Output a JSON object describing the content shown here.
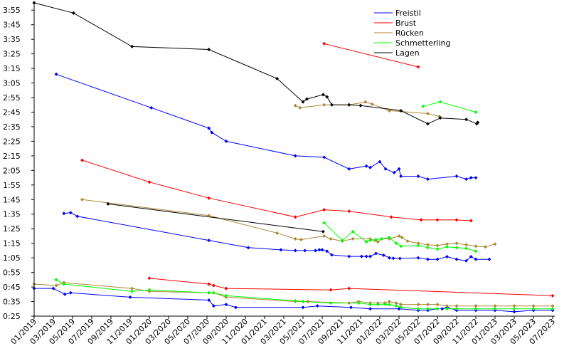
{
  "chart_data": {
    "type": "line",
    "title": "",
    "xlabel": "",
    "ylabel": "",
    "grid": false,
    "legend_position": "top-center",
    "x_tick_labels": [
      "01/2019",
      "03/2019",
      "05/2019",
      "07/2019",
      "09/2019",
      "11/2019",
      "01/2020",
      "03/2020",
      "05/2020",
      "07/2020",
      "09/2020",
      "11/2020",
      "01/2021",
      "03/2021",
      "05/2021",
      "07/2021",
      "09/2021",
      "11/2021",
      "01/2022",
      "03/2022",
      "05/2022",
      "07/2022",
      "09/2022",
      "11/2022",
      "01/2023",
      "03/2023",
      "05/2023",
      "07/2023"
    ],
    "y_ticks": [
      {
        "label": "0:25",
        "value": 25
      },
      {
        "label": "0:35",
        "value": 35
      },
      {
        "label": "0:45",
        "value": 45
      },
      {
        "label": "0:55",
        "value": 55
      },
      {
        "label": "1:05",
        "value": 65
      },
      {
        "label": "1:15",
        "value": 75
      },
      {
        "label": "1:25",
        "value": 85
      },
      {
        "label": "1:35",
        "value": 95
      },
      {
        "label": "1:45",
        "value": 105
      },
      {
        "label": "1:55",
        "value": 115
      },
      {
        "label": "2:05",
        "value": 125
      },
      {
        "label": "2:15",
        "value": 135
      },
      {
        "label": "2:25",
        "value": 145
      },
      {
        "label": "2:35",
        "value": 155
      },
      {
        "label": "2:45",
        "value": 165
      },
      {
        "label": "2:55",
        "value": 175
      },
      {
        "label": "3:05",
        "value": 185
      },
      {
        "label": "3:15",
        "value": 195
      },
      {
        "label": "3:25",
        "value": 205
      },
      {
        "label": "3:35",
        "value": 215
      },
      {
        "label": "3:45",
        "value": 225
      },
      {
        "label": "3:55",
        "value": 235
      }
    ],
    "xlim": [
      0,
      54
    ],
    "ylim": [
      25,
      240
    ],
    "x_unit": "months since 01/2019",
    "y_unit": "seconds",
    "series": [
      {
        "name": "Freistil",
        "color": "#0000ff",
        "segments": [
          [
            [
              0,
              44
            ],
            [
              2,
              44
            ],
            [
              3.2,
              40
            ],
            [
              3.8,
              41
            ],
            [
              10,
              38
            ],
            [
              18.2,
              36
            ],
            [
              18.7,
              32
            ],
            [
              20,
              33
            ],
            [
              21,
              31
            ],
            [
              28,
              31
            ],
            [
              29.5,
              32
            ],
            [
              33,
              31
            ],
            [
              35,
              30
            ],
            [
              38,
              30
            ],
            [
              40,
              29
            ],
            [
              41,
              29
            ],
            [
              42,
              30
            ],
            [
              42.5,
              30
            ],
            [
              43,
              31
            ],
            [
              44,
              29
            ],
            [
              46,
              29
            ],
            [
              48,
              29
            ],
            [
              50,
              28
            ],
            [
              52,
              29
            ],
            [
              54,
              29
            ]
          ],
          [
            [
              3.1,
              95.5
            ],
            [
              3.8,
              96
            ],
            [
              4.5,
              93.5
            ],
            [
              18.2,
              77
            ],
            [
              22.3,
              72
            ],
            [
              25.7,
              70.5
            ],
            [
              27.2,
              70
            ],
            [
              28.2,
              70
            ],
            [
              29.3,
              70
            ],
            [
              29.7,
              70.5
            ],
            [
              30,
              70.5
            ],
            [
              30.5,
              69.5
            ],
            [
              31,
              67
            ],
            [
              32.8,
              66
            ],
            [
              34.1,
              66
            ],
            [
              34.6,
              66
            ],
            [
              35,
              66
            ],
            [
              35.6,
              68
            ],
            [
              36.4,
              66.8
            ],
            [
              37,
              65
            ],
            [
              37.4,
              64.7
            ],
            [
              38.1,
              64.6
            ],
            [
              40,
              65
            ],
            [
              41,
              64
            ],
            [
              42,
              64
            ],
            [
              43,
              65.8
            ],
            [
              44,
              64
            ],
            [
              45,
              63
            ],
            [
              45.5,
              65.8
            ],
            [
              46,
              64
            ],
            [
              47.4,
              64
            ]
          ],
          [
            [
              2.3,
              191
            ],
            [
              12.2,
              168
            ],
            [
              18.2,
              154
            ],
            [
              18.5,
              151
            ],
            [
              20,
              145
            ],
            [
              27.2,
              135
            ],
            [
              30.2,
              134
            ],
            [
              32.8,
              126
            ],
            [
              34.6,
              128
            ],
            [
              35,
              127
            ],
            [
              36,
              131
            ],
            [
              36.6,
              126
            ],
            [
              37.5,
              123.5
            ],
            [
              38,
              126
            ],
            [
              38.2,
              121
            ],
            [
              40,
              121
            ],
            [
              41,
              119
            ],
            [
              44,
              121
            ],
            [
              45,
              119
            ],
            [
              45.5,
              120
            ],
            [
              46,
              120
            ]
          ]
        ]
      },
      {
        "name": "Brust",
        "color": "#ff0000",
        "segments": [
          [
            [
              12,
              51
            ],
            [
              18.2,
              47
            ],
            [
              18.7,
              46
            ],
            [
              20,
              44
            ],
            [
              30.9,
              43
            ],
            [
              32.8,
              44
            ],
            [
              54,
              39
            ]
          ],
          [
            [
              5,
              132
            ],
            [
              12,
              117
            ],
            [
              18.2,
              106
            ],
            [
              27.2,
              93
            ],
            [
              30.2,
              98
            ],
            [
              32.8,
              97
            ],
            [
              37.2,
              93
            ],
            [
              40.3,
              91
            ],
            [
              42,
              91
            ],
            [
              44,
              91
            ],
            [
              45.5,
              90.5
            ]
          ],
          [
            [
              30.2,
              212
            ],
            [
              40,
              196
            ]
          ]
        ]
      },
      {
        "name": "Rücken",
        "color": "#aa8833",
        "segments": [
          [
            [
              0,
              47
            ],
            [
              2.3,
              46
            ],
            [
              3.1,
              48
            ],
            [
              10.2,
              44
            ],
            [
              12,
              42
            ],
            [
              18.2,
              41
            ],
            [
              18.7,
              41
            ],
            [
              20,
              38
            ],
            [
              27.2,
              35
            ],
            [
              28,
              35
            ],
            [
              28.5,
              35
            ],
            [
              32.8,
              34
            ],
            [
              33.8,
              35
            ],
            [
              35,
              34
            ],
            [
              35.8,
              34
            ],
            [
              36.5,
              34
            ],
            [
              37,
              35
            ],
            [
              37.7,
              34
            ],
            [
              38.2,
              33
            ],
            [
              40,
              33
            ],
            [
              41,
              33
            ],
            [
              42,
              33
            ],
            [
              43,
              32
            ],
            [
              44,
              32
            ],
            [
              46,
              32
            ],
            [
              48,
              32
            ],
            [
              50,
              32
            ],
            [
              52,
              32
            ],
            [
              54,
              32
            ]
          ],
          [
            [
              5,
              105
            ],
            [
              18.2,
              94
            ],
            [
              25.3,
              82
            ],
            [
              27.2,
              78
            ],
            [
              27.8,
              77.5
            ],
            [
              30.2,
              80
            ],
            [
              30.9,
              78
            ],
            [
              32.1,
              76.5
            ],
            [
              33.2,
              78
            ],
            [
              35,
              78
            ],
            [
              35.5,
              77
            ],
            [
              35.8,
              76
            ],
            [
              36.2,
              78
            ],
            [
              37,
              78
            ],
            [
              38,
              80
            ],
            [
              38.3,
              79
            ],
            [
              38.9,
              76.5
            ],
            [
              40,
              75
            ],
            [
              41,
              74
            ],
            [
              42,
              73.5
            ],
            [
              43,
              74.5
            ],
            [
              44,
              75
            ],
            [
              45,
              74
            ],
            [
              46,
              73
            ],
            [
              47,
              72.5
            ],
            [
              48,
              74.5
            ]
          ],
          [
            [
              27.2,
              169.5
            ],
            [
              27.7,
              168
            ],
            [
              30.2,
              170
            ],
            [
              32.8,
              170
            ],
            [
              34.5,
              172
            ],
            [
              35.2,
              170.5
            ],
            [
              37,
              166
            ],
            [
              41,
              164
            ],
            [
              42.2,
              162
            ]
          ]
        ]
      },
      {
        "name": "Schmetterling",
        "color": "#00ff00",
        "segments": [
          [
            [
              2.3,
              50
            ],
            [
              3.1,
              47
            ],
            [
              10.2,
              42
            ],
            [
              12,
              43
            ],
            [
              18.2,
              41
            ],
            [
              18.7,
              41
            ],
            [
              20,
              39
            ],
            [
              27.2,
              35.5
            ],
            [
              28,
              35
            ],
            [
              30.9,
              34
            ],
            [
              33.8,
              34
            ],
            [
              35,
              33
            ],
            [
              35.8,
              33
            ],
            [
              36.6,
              33
            ],
            [
              37,
              33
            ],
            [
              37.7,
              32
            ],
            [
              38.2,
              31
            ],
            [
              40,
              30
            ],
            [
              41,
              30
            ],
            [
              42,
              30
            ],
            [
              43,
              30
            ],
            [
              44,
              30
            ],
            [
              46,
              30
            ],
            [
              48,
              30
            ],
            [
              50,
              30
            ],
            [
              52,
              30
            ],
            [
              54,
              30
            ]
          ],
          [
            [
              30.2,
              89
            ],
            [
              32.1,
              77
            ],
            [
              33.2,
              83
            ],
            [
              34.6,
              76
            ],
            [
              35,
              77
            ],
            [
              35.6,
              77.5
            ],
            [
              36.2,
              78
            ],
            [
              37,
              79
            ],
            [
              37.7,
              75
            ],
            [
              38.2,
              73
            ],
            [
              40,
              73.5
            ],
            [
              41,
              72
            ],
            [
              42,
              71
            ],
            [
              43,
              72.5
            ],
            [
              44,
              72
            ],
            [
              45,
              71.5
            ],
            [
              46,
              69.5
            ]
          ],
          [
            [
              40.5,
              169
            ],
            [
              42.3,
              172
            ],
            [
              46,
              165
            ]
          ]
        ]
      },
      {
        "name": "Lagen",
        "color": "#000000",
        "segments": [
          [
            [
              0,
              240
            ],
            [
              4.1,
              233
            ],
            [
              10.2,
              210
            ],
            [
              18.2,
              208
            ],
            [
              25.3,
              188
            ],
            [
              28,
              172
            ],
            [
              28.4,
              174
            ],
            [
              30.1,
              177
            ],
            [
              30.5,
              175.5
            ],
            [
              31,
              170
            ],
            [
              32.8,
              170
            ],
            [
              34,
              169.5
            ],
            [
              38.2,
              166
            ],
            [
              41,
              157
            ],
            [
              42.3,
              161
            ],
            [
              45,
              160
            ],
            [
              46.1,
              157
            ],
            [
              46.2,
              158
            ]
          ],
          [
            [
              7.7,
              102
            ],
            [
              30.1,
              83
            ]
          ]
        ]
      }
    ]
  }
}
